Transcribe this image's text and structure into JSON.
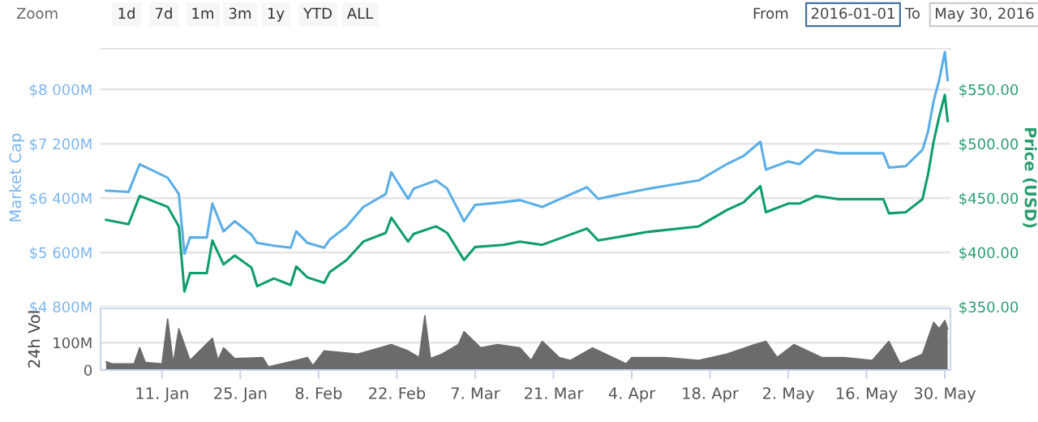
{
  "chart_data": [
    {
      "type": "line",
      "annotations": [
        "Zoom",
        "1d",
        "7d",
        "1m",
        "3m",
        "1y",
        "YTD",
        "ALL",
        "From",
        "2016-01-01",
        "To",
        "May 30, 2016"
      ],
      "ylabel": "Market Cap",
      "y2label": "Price (USD)",
      "x": [
        "2016-01-01",
        "2016-01-05",
        "2016-01-07",
        "2016-01-12",
        "2016-01-14",
        "2016-01-15",
        "2016-01-16",
        "2016-01-19",
        "2016-01-20",
        "2016-01-22",
        "2016-01-24",
        "2016-01-27",
        "2016-01-28",
        "2016-01-31",
        "2016-02-03",
        "2016-02-04",
        "2016-02-06",
        "2016-02-09",
        "2016-02-10",
        "2016-02-13",
        "2016-02-16",
        "2016-02-20",
        "2016-02-21",
        "2016-02-24",
        "2016-02-25",
        "2016-02-29",
        "2016-03-02",
        "2016-03-05",
        "2016-03-07",
        "2016-03-12",
        "2016-03-15",
        "2016-03-19",
        "2016-03-27",
        "2016-03-29",
        "2016-04-07",
        "2016-04-16",
        "2016-04-21",
        "2016-04-24",
        "2016-04-27",
        "2016-04-28",
        "2016-05-02",
        "2016-05-04",
        "2016-05-07",
        "2016-05-11",
        "2016-05-19",
        "2016-05-20",
        "2016-05-23",
        "2016-05-26",
        "2016-05-27",
        "2016-05-28",
        "2016-05-29",
        "2016-05-30",
        "2016-05-30T12:00"
      ],
      "series": [
        {
          "name": null,
          "color": "#5aaee6",
          "values": [
            6510,
            6490,
            6900,
            6700,
            6460,
            5580,
            5820,
            5820,
            6320,
            5910,
            6060,
            5860,
            5740,
            5700,
            5670,
            5910,
            5740,
            5670,
            5790,
            5980,
            6270,
            6460,
            6780,
            6390,
            6540,
            6660,
            6540,
            6060,
            6300,
            6340,
            6370,
            6270,
            6560,
            6390,
            6540,
            6660,
            6900,
            7020,
            7230,
            6820,
            6940,
            6900,
            7110,
            7060,
            7060,
            6850,
            6870,
            7110,
            7380,
            7830,
            8140,
            8550,
            8140
          ]
        },
        {
          "name": null,
          "color": "#0f9d6c",
          "axis": "y2",
          "values": [
            430,
            426,
            452,
            442,
            424,
            364,
            381,
            381,
            411,
            389,
            397,
            386,
            369,
            376,
            370,
            387,
            377,
            372,
            382,
            393,
            410,
            418,
            432,
            410,
            417,
            424,
            418,
            393,
            405,
            407,
            410,
            407,
            422,
            411,
            419,
            424,
            439,
            446,
            461,
            437,
            445,
            445,
            452,
            449,
            449,
            436,
            437,
            449,
            472,
            502,
            525,
            545,
            521
          ]
        }
      ],
      "xlim": [
        "2015-12-31",
        "2016-05-31"
      ],
      "ylim": [
        4800,
        8600
      ],
      "yticks": [
        {
          "value": 4800,
          "label": "$4 800M"
        },
        {
          "value": 5600,
          "label": "$5 600M"
        },
        {
          "value": 6400,
          "label": "$6 400M"
        },
        {
          "value": 7200,
          "label": "$7 200M"
        },
        {
          "value": 8000,
          "label": "$8 000M"
        }
      ],
      "y2lim": [
        350,
        587.5
      ],
      "y2ticks": [
        {
          "value": 350,
          "label": "$350.00"
        },
        {
          "value": 400,
          "label": "$400.00"
        },
        {
          "value": 450,
          "label": "$450.00"
        },
        {
          "value": 500,
          "label": "$500.00"
        },
        {
          "value": 550,
          "label": "$550.00"
        }
      ],
      "tick_labels": "y",
      "grid": "y",
      "legend": false
    },
    {
      "type": "area",
      "ylabel": "24h Vol",
      "x": [
        "2016-01-01",
        "2016-01-02",
        "2016-01-06",
        "2016-01-07",
        "2016-01-08",
        "2016-01-11",
        "2016-01-12",
        "2016-01-13",
        "2016-01-14",
        "2016-01-16",
        "2016-01-20",
        "2016-01-21",
        "2016-01-22",
        "2016-01-24",
        "2016-01-29",
        "2016-01-30",
        "2016-02-04",
        "2016-02-06",
        "2016-02-07",
        "2016-02-09",
        "2016-02-15",
        "2016-02-21",
        "2016-02-24",
        "2016-02-26",
        "2016-02-27",
        "2016-02-28",
        "2016-03-01",
        "2016-03-04",
        "2016-03-05",
        "2016-03-08",
        "2016-03-11",
        "2016-03-15",
        "2016-03-17",
        "2016-03-19",
        "2016-03-22",
        "2016-03-24",
        "2016-03-28",
        "2016-04-03",
        "2016-04-04",
        "2016-04-10",
        "2016-04-16",
        "2016-04-21",
        "2016-04-26",
        "2016-04-28",
        "2016-04-30",
        "2016-05-03",
        "2016-05-08",
        "2016-05-12",
        "2016-05-17",
        "2016-05-20",
        "2016-05-22",
        "2016-05-26",
        "2016-05-28",
        "2016-05-29",
        "2016-05-30",
        "2016-05-30T12:00"
      ],
      "series": [
        {
          "name": null,
          "color": "#6b6b6b",
          "values": [
            30,
            23,
            23,
            81,
            28,
            23,
            186,
            23,
            151,
            35,
            116,
            35,
            81,
            42,
            46,
            12,
            35,
            46,
            16,
            70,
            58,
            93,
            70,
            46,
            198,
            42,
            58,
            93,
            140,
            81,
            93,
            81,
            35,
            105,
            46,
            35,
            81,
            23,
            46,
            46,
            35,
            58,
            93,
            105,
            46,
            93,
            46,
            46,
            35,
            105,
            23,
            58,
            174,
            151,
            181,
            151
          ]
        }
      ],
      "xlim": [
        "2015-12-31",
        "2016-05-31"
      ],
      "xticks": [
        {
          "value": "2016-01-11",
          "label": "11. Jan"
        },
        {
          "value": "2016-01-25",
          "label": "25. Jan"
        },
        {
          "value": "2016-02-08",
          "label": "8. Feb"
        },
        {
          "value": "2016-02-22",
          "label": "22. Feb"
        },
        {
          "value": "2016-03-07",
          "label": "7. Mar"
        },
        {
          "value": "2016-03-21",
          "label": "21. Mar"
        },
        {
          "value": "2016-04-04",
          "label": "4. Apr"
        },
        {
          "value": "2016-04-18",
          "label": "18. Apr"
        },
        {
          "value": "2016-05-02",
          "label": "2. May"
        },
        {
          "value": "2016-05-16",
          "label": "16. May"
        },
        {
          "value": "2016-05-30",
          "label": "30. May"
        }
      ],
      "ylim": [
        0,
        225
      ],
      "yticks": [
        0,
        {
          "value": 100,
          "label": "100M"
        }
      ],
      "grid": "y",
      "legend": false
    }
  ]
}
